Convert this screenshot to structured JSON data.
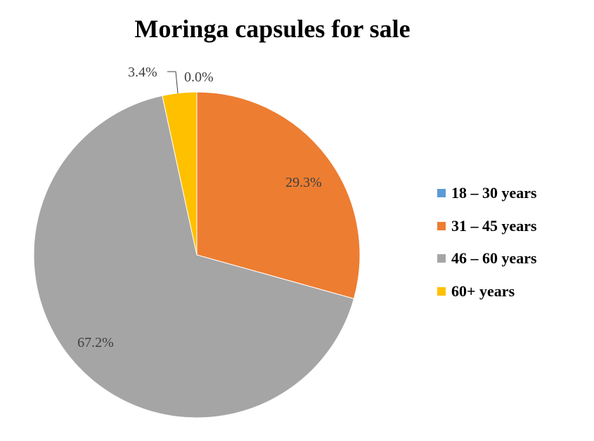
{
  "chart_data": {
    "type": "pie",
    "title": "Moringa capsules for sale",
    "legend_position": "right",
    "categories": [
      "18 – 30 years",
      "31 – 45 years",
      "46 – 60 years",
      "60+ years"
    ],
    "values": [
      0.0,
      29.3,
      67.2,
      3.4
    ],
    "data_labels": [
      "0.0%",
      "29.3%",
      "67.2%",
      "3.4%"
    ],
    "colors": [
      "#5B9BD5",
      "#ED7D31",
      "#A5A5A5",
      "#FFC000"
    ]
  }
}
